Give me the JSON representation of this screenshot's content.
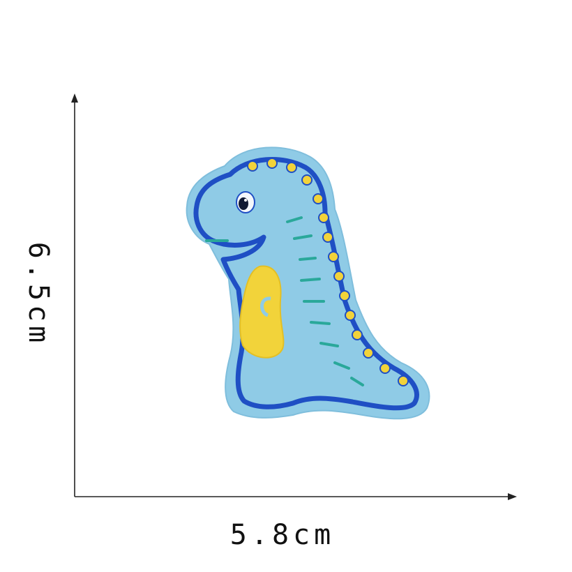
{
  "dimensions": {
    "height_label": "6.5cm",
    "width_label": "5.8cm"
  },
  "product": {
    "subject": "dinosaur-embroidered-patch-icon",
    "colors": {
      "felt": "#8fcbe6",
      "felt_edge": "#7fbedc",
      "outline": "#1f4fc4",
      "belly": "#f2d33a",
      "spikes": "#f2d33a",
      "stripes": "#2aa89a",
      "eye": "#111a33",
      "axis": "#222222"
    }
  }
}
